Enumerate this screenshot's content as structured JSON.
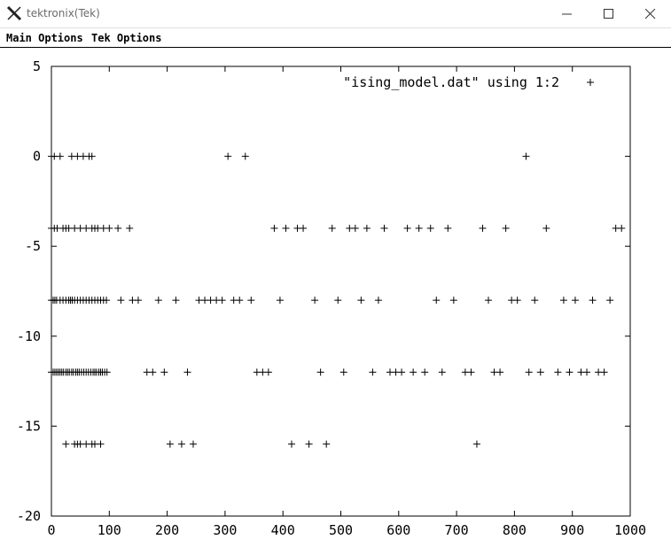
{
  "window": {
    "title": "tektronix(Tek)",
    "icon": "x-logo-icon",
    "controls": [
      "minimize-icon",
      "maximize-icon",
      "close-icon"
    ]
  },
  "menubar": {
    "items": [
      "Main Options",
      "Tek Options"
    ]
  },
  "chart_data": {
    "type": "scatter",
    "title": "",
    "xlabel": "",
    "ylabel": "",
    "xlim": [
      0,
      1000
    ],
    "ylim": [
      -20,
      5
    ],
    "xticks": [
      0,
      100,
      200,
      300,
      400,
      500,
      600,
      700,
      800,
      900,
      1000
    ],
    "yticks": [
      5,
      0,
      -5,
      -10,
      -15,
      -20
    ],
    "grid": false,
    "legend_position": "top-right",
    "marker": "+",
    "color": "#000000",
    "series": [
      {
        "name": "\"ising_model.dat\" using 1:2",
        "points": [
          [
            0,
            0
          ],
          [
            5,
            0
          ],
          [
            15,
            0
          ],
          [
            35,
            0
          ],
          [
            45,
            0
          ],
          [
            55,
            0
          ],
          [
            65,
            0
          ],
          [
            70,
            0
          ],
          [
            305,
            0
          ],
          [
            335,
            0
          ],
          [
            820,
            0
          ],
          [
            0,
            -4
          ],
          [
            5,
            -4
          ],
          [
            10,
            -4
          ],
          [
            20,
            -4
          ],
          [
            25,
            -4
          ],
          [
            30,
            -4
          ],
          [
            40,
            -4
          ],
          [
            50,
            -4
          ],
          [
            60,
            -4
          ],
          [
            70,
            -4
          ],
          [
            75,
            -4
          ],
          [
            80,
            -4
          ],
          [
            90,
            -4
          ],
          [
            100,
            -4
          ],
          [
            115,
            -4
          ],
          [
            135,
            -4
          ],
          [
            385,
            -4
          ],
          [
            405,
            -4
          ],
          [
            425,
            -4
          ],
          [
            435,
            -4
          ],
          [
            485,
            -4
          ],
          [
            515,
            -4
          ],
          [
            525,
            -4
          ],
          [
            545,
            -4
          ],
          [
            575,
            -4
          ],
          [
            615,
            -4
          ],
          [
            635,
            -4
          ],
          [
            655,
            -4
          ],
          [
            685,
            -4
          ],
          [
            745,
            -4
          ],
          [
            785,
            -4
          ],
          [
            855,
            -4
          ],
          [
            975,
            -4
          ],
          [
            985,
            -4
          ],
          [
            0,
            -8
          ],
          [
            3,
            -8
          ],
          [
            6,
            -8
          ],
          [
            9,
            -8
          ],
          [
            15,
            -8
          ],
          [
            20,
            -8
          ],
          [
            25,
            -8
          ],
          [
            30,
            -8
          ],
          [
            33,
            -8
          ],
          [
            36,
            -8
          ],
          [
            40,
            -8
          ],
          [
            45,
            -8
          ],
          [
            50,
            -8
          ],
          [
            55,
            -8
          ],
          [
            60,
            -8
          ],
          [
            65,
            -8
          ],
          [
            70,
            -8
          ],
          [
            75,
            -8
          ],
          [
            80,
            -8
          ],
          [
            85,
            -8
          ],
          [
            90,
            -8
          ],
          [
            95,
            -8
          ],
          [
            120,
            -8
          ],
          [
            140,
            -8
          ],
          [
            150,
            -8
          ],
          [
            185,
            -8
          ],
          [
            215,
            -8
          ],
          [
            255,
            -8
          ],
          [
            265,
            -8
          ],
          [
            275,
            -8
          ],
          [
            285,
            -8
          ],
          [
            295,
            -8
          ],
          [
            315,
            -8
          ],
          [
            325,
            -8
          ],
          [
            345,
            -8
          ],
          [
            395,
            -8
          ],
          [
            455,
            -8
          ],
          [
            495,
            -8
          ],
          [
            535,
            -8
          ],
          [
            565,
            -8
          ],
          [
            665,
            -8
          ],
          [
            695,
            -8
          ],
          [
            755,
            -8
          ],
          [
            795,
            -8
          ],
          [
            805,
            -8
          ],
          [
            835,
            -8
          ],
          [
            885,
            -8
          ],
          [
            905,
            -8
          ],
          [
            935,
            -8
          ],
          [
            965,
            -8
          ],
          [
            0,
            -12
          ],
          [
            3,
            -12
          ],
          [
            6,
            -12
          ],
          [
            9,
            -12
          ],
          [
            12,
            -12
          ],
          [
            15,
            -12
          ],
          [
            18,
            -12
          ],
          [
            21,
            -12
          ],
          [
            25,
            -12
          ],
          [
            28,
            -12
          ],
          [
            31,
            -12
          ],
          [
            35,
            -12
          ],
          [
            38,
            -12
          ],
          [
            42,
            -12
          ],
          [
            45,
            -12
          ],
          [
            48,
            -12
          ],
          [
            52,
            -12
          ],
          [
            56,
            -12
          ],
          [
            60,
            -12
          ],
          [
            64,
            -12
          ],
          [
            68,
            -12
          ],
          [
            72,
            -12
          ],
          [
            75,
            -12
          ],
          [
            78,
            -12
          ],
          [
            82,
            -12
          ],
          [
            85,
            -12
          ],
          [
            88,
            -12
          ],
          [
            92,
            -12
          ],
          [
            96,
            -12
          ],
          [
            165,
            -12
          ],
          [
            175,
            -12
          ],
          [
            195,
            -12
          ],
          [
            235,
            -12
          ],
          [
            355,
            -12
          ],
          [
            365,
            -12
          ],
          [
            375,
            -12
          ],
          [
            465,
            -12
          ],
          [
            505,
            -12
          ],
          [
            555,
            -12
          ],
          [
            585,
            -12
          ],
          [
            595,
            -12
          ],
          [
            605,
            -12
          ],
          [
            625,
            -12
          ],
          [
            645,
            -12
          ],
          [
            675,
            -12
          ],
          [
            715,
            -12
          ],
          [
            725,
            -12
          ],
          [
            765,
            -12
          ],
          [
            775,
            -12
          ],
          [
            825,
            -12
          ],
          [
            845,
            -12
          ],
          [
            875,
            -12
          ],
          [
            895,
            -12
          ],
          [
            915,
            -12
          ],
          [
            925,
            -12
          ],
          [
            945,
            -12
          ],
          [
            955,
            -12
          ],
          [
            25,
            -16
          ],
          [
            40,
            -16
          ],
          [
            45,
            -16
          ],
          [
            50,
            -16
          ],
          [
            60,
            -16
          ],
          [
            70,
            -16
          ],
          [
            75,
            -16
          ],
          [
            85,
            -16
          ],
          [
            205,
            -16
          ],
          [
            225,
            -16
          ],
          [
            245,
            -16
          ],
          [
            415,
            -16
          ],
          [
            445,
            -16
          ],
          [
            475,
            -16
          ],
          [
            735,
            -16
          ]
        ]
      }
    ]
  }
}
